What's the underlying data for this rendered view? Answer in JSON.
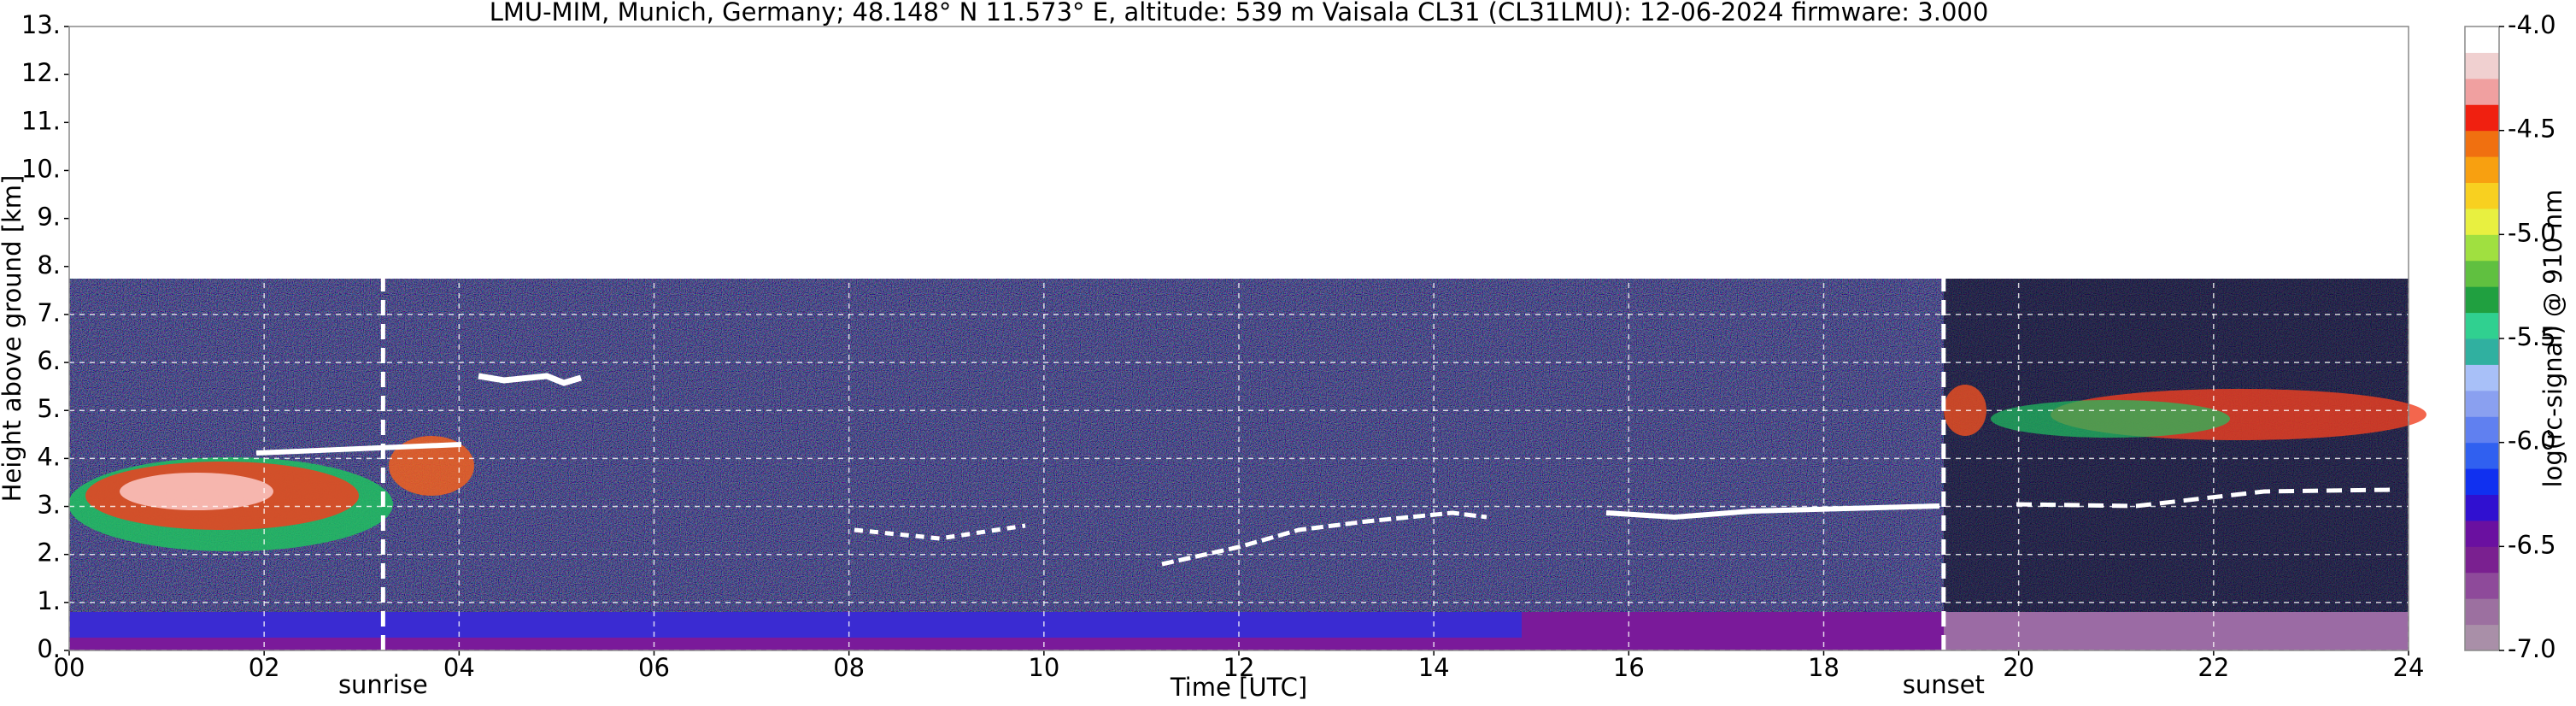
{
  "chart_data": {
    "type": "backscatter",
    "title": "LMU-MIM, Munich, Germany; 48.148° N 11.573° E, altitude: 539 m    Vaisala CL31 (CL31LMU): 12-06-2024    firmware: 3.000",
    "x_label": "Time [UTC]",
    "y_label": "Height above ground [km]",
    "xlim": [
      0,
      24
    ],
    "xticks": [
      {
        "value": 0,
        "label": "00"
      },
      {
        "value": 2,
        "label": "02"
      },
      {
        "value": 4,
        "label": "04"
      },
      {
        "value": 6,
        "label": "06"
      },
      {
        "value": 8,
        "label": "08"
      },
      10,
      12,
      14,
      16,
      18,
      20,
      22,
      24
    ],
    "ylim": [
      0,
      13
    ],
    "yticks": [
      {
        "value": 0,
        "label": "0."
      },
      {
        "value": 1,
        "label": "1."
      },
      {
        "value": 2,
        "label": "2."
      },
      {
        "value": 3,
        "label": "3."
      },
      {
        "value": 4,
        "label": "4."
      },
      {
        "value": 5,
        "label": "5."
      },
      {
        "value": 6,
        "label": "6."
      },
      {
        "value": 7,
        "label": "7."
      },
      {
        "value": 8,
        "label": "8."
      },
      {
        "value": 9,
        "label": "9."
      },
      {
        "value": 10,
        "label": "10."
      },
      {
        "value": 11,
        "label": "11."
      },
      {
        "value": 12,
        "label": "12."
      },
      {
        "value": 13,
        "label": "13."
      }
    ],
    "grid": true,
    "annotations": [
      {
        "label": "sunrise",
        "x": 3.22
      },
      {
        "label": "sunset",
        "x": 19.23
      }
    ],
    "colorbar": {
      "label": "log(rc-signal) @ 910 nm",
      "lim": [
        -7,
        -4
      ],
      "ticks": [
        {
          "value": -7,
          "label": "-7.0"
        },
        -6.5,
        {
          "value": -6,
          "label": "-6.0"
        },
        -5.5,
        {
          "value": -5,
          "label": "-5.0"
        },
        -4.5,
        {
          "value": -4,
          "label": "-4.0"
        }
      ],
      "colors": [
        "#a98fa8",
        "#9c70a0",
        "#8e4a9a",
        "#7a2090",
        "#6a10a0",
        "#3010d0",
        "#1030f0",
        "#3060f0",
        "#6080f0",
        "#8aa0f0",
        "#a8c0f8",
        "#30b0a0",
        "#30d090",
        "#20a040",
        "#60c040",
        "#a0e040",
        "#e8f040",
        "#f8d020",
        "#f8a010",
        "#f07010",
        "#f02010",
        "#f0a0a0",
        "#f0d0d0",
        "#ffffff"
      ]
    }
  }
}
